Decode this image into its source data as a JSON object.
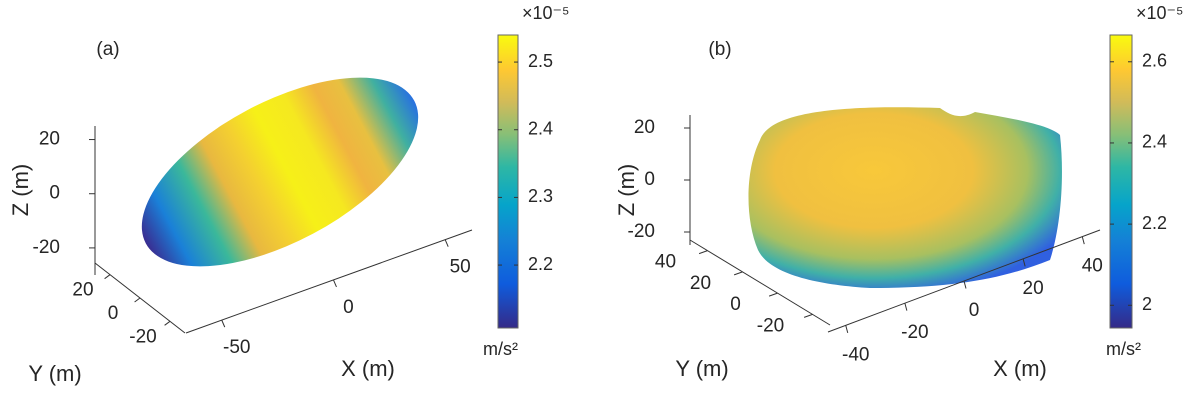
{
  "chart_data": [
    {
      "type": "surface3d",
      "panel_label": "(a)",
      "xlabel": "X (m)",
      "ylabel": "Y (m)",
      "zlabel": "Z (m)",
      "xlim": [
        -66,
        62
      ],
      "xticks": [
        -50,
        0,
        50
      ],
      "ylim": [
        30,
        -30
      ],
      "yticks": [
        20,
        0,
        -20
      ],
      "zlim": [
        -30,
        25
      ],
      "zticks": [
        20,
        0,
        -20
      ],
      "colorbar": {
        "clim": [
          2.107,
          2.54
        ],
        "ticks": [
          2.2,
          2.3,
          2.4,
          2.5
        ],
        "exponent_label": "×10⁻⁵",
        "unit_label": "m/s²"
      }
    },
    {
      "type": "surface3d",
      "panel_label": "(b)",
      "xlabel": "X (m)",
      "ylabel": "Y (m)",
      "zlabel": "Z (m)",
      "xlim": [
        -46,
        46
      ],
      "xticks": [
        -40,
        -20,
        0,
        20,
        40
      ],
      "ylim": [
        50,
        -30
      ],
      "yticks": [
        40,
        20,
        0,
        -20
      ],
      "zlim": [
        -25,
        25
      ],
      "zticks": [
        20,
        0,
        -20
      ],
      "colorbar": {
        "clim": [
          1.944,
          2.666
        ],
        "ticks": [
          2,
          2.2,
          2.4,
          2.6
        ],
        "exponent_label": "×10⁻⁵",
        "unit_label": "m/s²"
      }
    }
  ]
}
